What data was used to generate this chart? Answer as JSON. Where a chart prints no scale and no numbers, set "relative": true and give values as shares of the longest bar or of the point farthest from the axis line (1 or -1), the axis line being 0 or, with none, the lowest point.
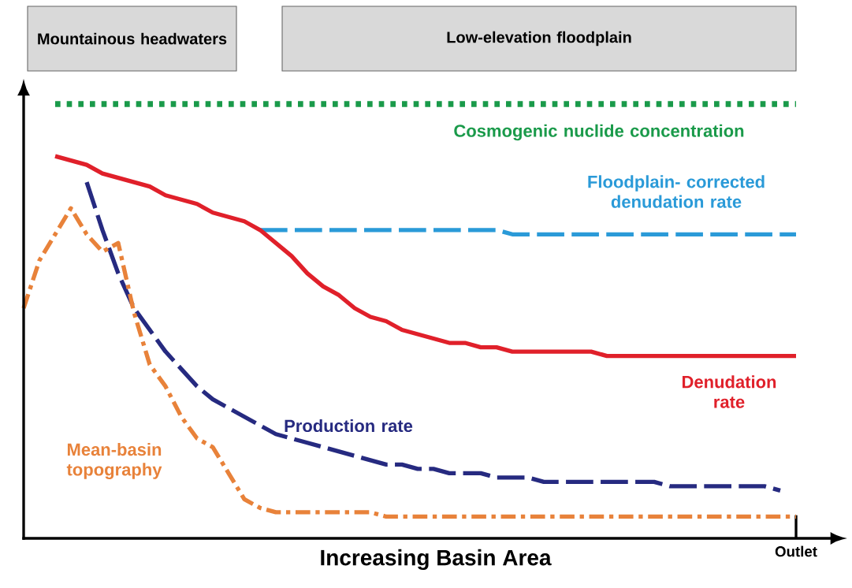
{
  "chart_data": {
    "type": "line",
    "relative": true,
    "xlabel": "Increasing Basin Area",
    "annotations": [
      "Mountainous headwaters",
      "Low-elevation floodplain",
      "Outlet"
    ],
    "categories": [
      null,
      null,
      null,
      null,
      null,
      null,
      null,
      null,
      null,
      null,
      null,
      null,
      null,
      null,
      null,
      null,
      null,
      null,
      null,
      null,
      null,
      null,
      null,
      null,
      null,
      null,
      null,
      null,
      null,
      null,
      null,
      null,
      null,
      null,
      null,
      null,
      null,
      null,
      null,
      null,
      null,
      null,
      null,
      null,
      null,
      null,
      null,
      null,
      null,
      null
    ],
    "series": [
      {
        "name": "Cosmogenic nuclide concentration",
        "color": "#1a9a4a",
        "line_style": "dotted",
        "values": [
          null,
          null,
          1,
          1,
          1,
          1,
          1,
          1,
          1,
          1,
          1,
          1,
          1,
          1,
          1,
          1,
          1,
          1,
          1,
          1,
          1,
          1,
          1,
          1,
          1,
          1,
          1,
          1,
          1,
          1,
          1,
          1,
          1,
          1,
          1,
          1,
          1,
          1,
          1,
          1,
          1,
          1,
          1,
          1,
          1,
          1,
          1,
          1,
          1,
          1
        ]
      },
      {
        "name": "Floodplain- corrected denudation rate",
        "color": "#2a9ad8",
        "line_style": "dashed",
        "values": [
          null,
          null,
          null,
          null,
          null,
          null,
          null,
          null,
          null,
          null,
          null,
          null,
          null,
          null,
          null,
          0.71,
          0.71,
          0.71,
          0.71,
          0.71,
          0.71,
          0.71,
          0.71,
          0.71,
          0.71,
          0.71,
          0.71,
          0.71,
          0.71,
          0.71,
          0.71,
          0.7,
          0.7,
          0.7,
          0.7,
          0.7,
          0.7,
          0.7,
          0.7,
          0.7,
          0.7,
          0.7,
          0.7,
          0.7,
          0.7,
          0.7,
          0.7,
          0.7,
          0.7,
          0.7
        ]
      },
      {
        "name": "Denudation rate",
        "color": "#e0202a",
        "line_style": "solid",
        "values": [
          null,
          null,
          0.88,
          0.87,
          0.86,
          0.84,
          0.83,
          0.82,
          0.81,
          0.79,
          0.78,
          0.77,
          0.75,
          0.74,
          0.73,
          0.71,
          0.68,
          0.65,
          0.61,
          0.58,
          0.56,
          0.53,
          0.51,
          0.5,
          0.48,
          0.47,
          0.46,
          0.45,
          0.45,
          0.44,
          0.44,
          0.43,
          0.43,
          0.43,
          0.43,
          0.43,
          0.43,
          0.42,
          0.42,
          0.42,
          0.42,
          0.42,
          0.42,
          0.42,
          0.42,
          0.42,
          0.42,
          0.42,
          0.42,
          0.42
        ]
      },
      {
        "name": "Production rate",
        "color": "#262a80",
        "line_style": "dashed",
        "values": [
          null,
          null,
          null,
          null,
          0.82,
          0.71,
          0.61,
          0.53,
          0.48,
          0.43,
          0.39,
          0.35,
          0.32,
          0.3,
          0.28,
          0.26,
          0.24,
          0.23,
          0.22,
          0.21,
          0.2,
          0.19,
          0.18,
          0.17,
          0.17,
          0.16,
          0.16,
          0.15,
          0.15,
          0.15,
          0.14,
          0.14,
          0.14,
          0.13,
          0.13,
          0.13,
          0.13,
          0.13,
          0.13,
          0.13,
          0.13,
          0.12,
          0.12,
          0.12,
          0.12,
          0.12,
          0.12,
          0.12,
          0.11,
          null
        ]
      },
      {
        "name": "Mean-basin topography",
        "color": "#e8823a",
        "line_style": "dashdot",
        "values": [
          0.53,
          0.64,
          0.7,
          0.76,
          0.7,
          0.66,
          0.68,
          0.52,
          0.4,
          0.35,
          0.28,
          0.23,
          0.21,
          0.15,
          0.09,
          0.07,
          0.06,
          0.06,
          0.06,
          0.06,
          0.06,
          0.06,
          0.06,
          0.05,
          0.05,
          0.05,
          0.05,
          0.05,
          0.05,
          0.05,
          0.05,
          0.05,
          0.05,
          0.05,
          0.05,
          0.05,
          0.05,
          0.05,
          0.05,
          0.05,
          0.05,
          0.05,
          0.05,
          0.05,
          0.05,
          0.05,
          0.05,
          0.05,
          0.05,
          0.05
        ]
      }
    ]
  }
}
